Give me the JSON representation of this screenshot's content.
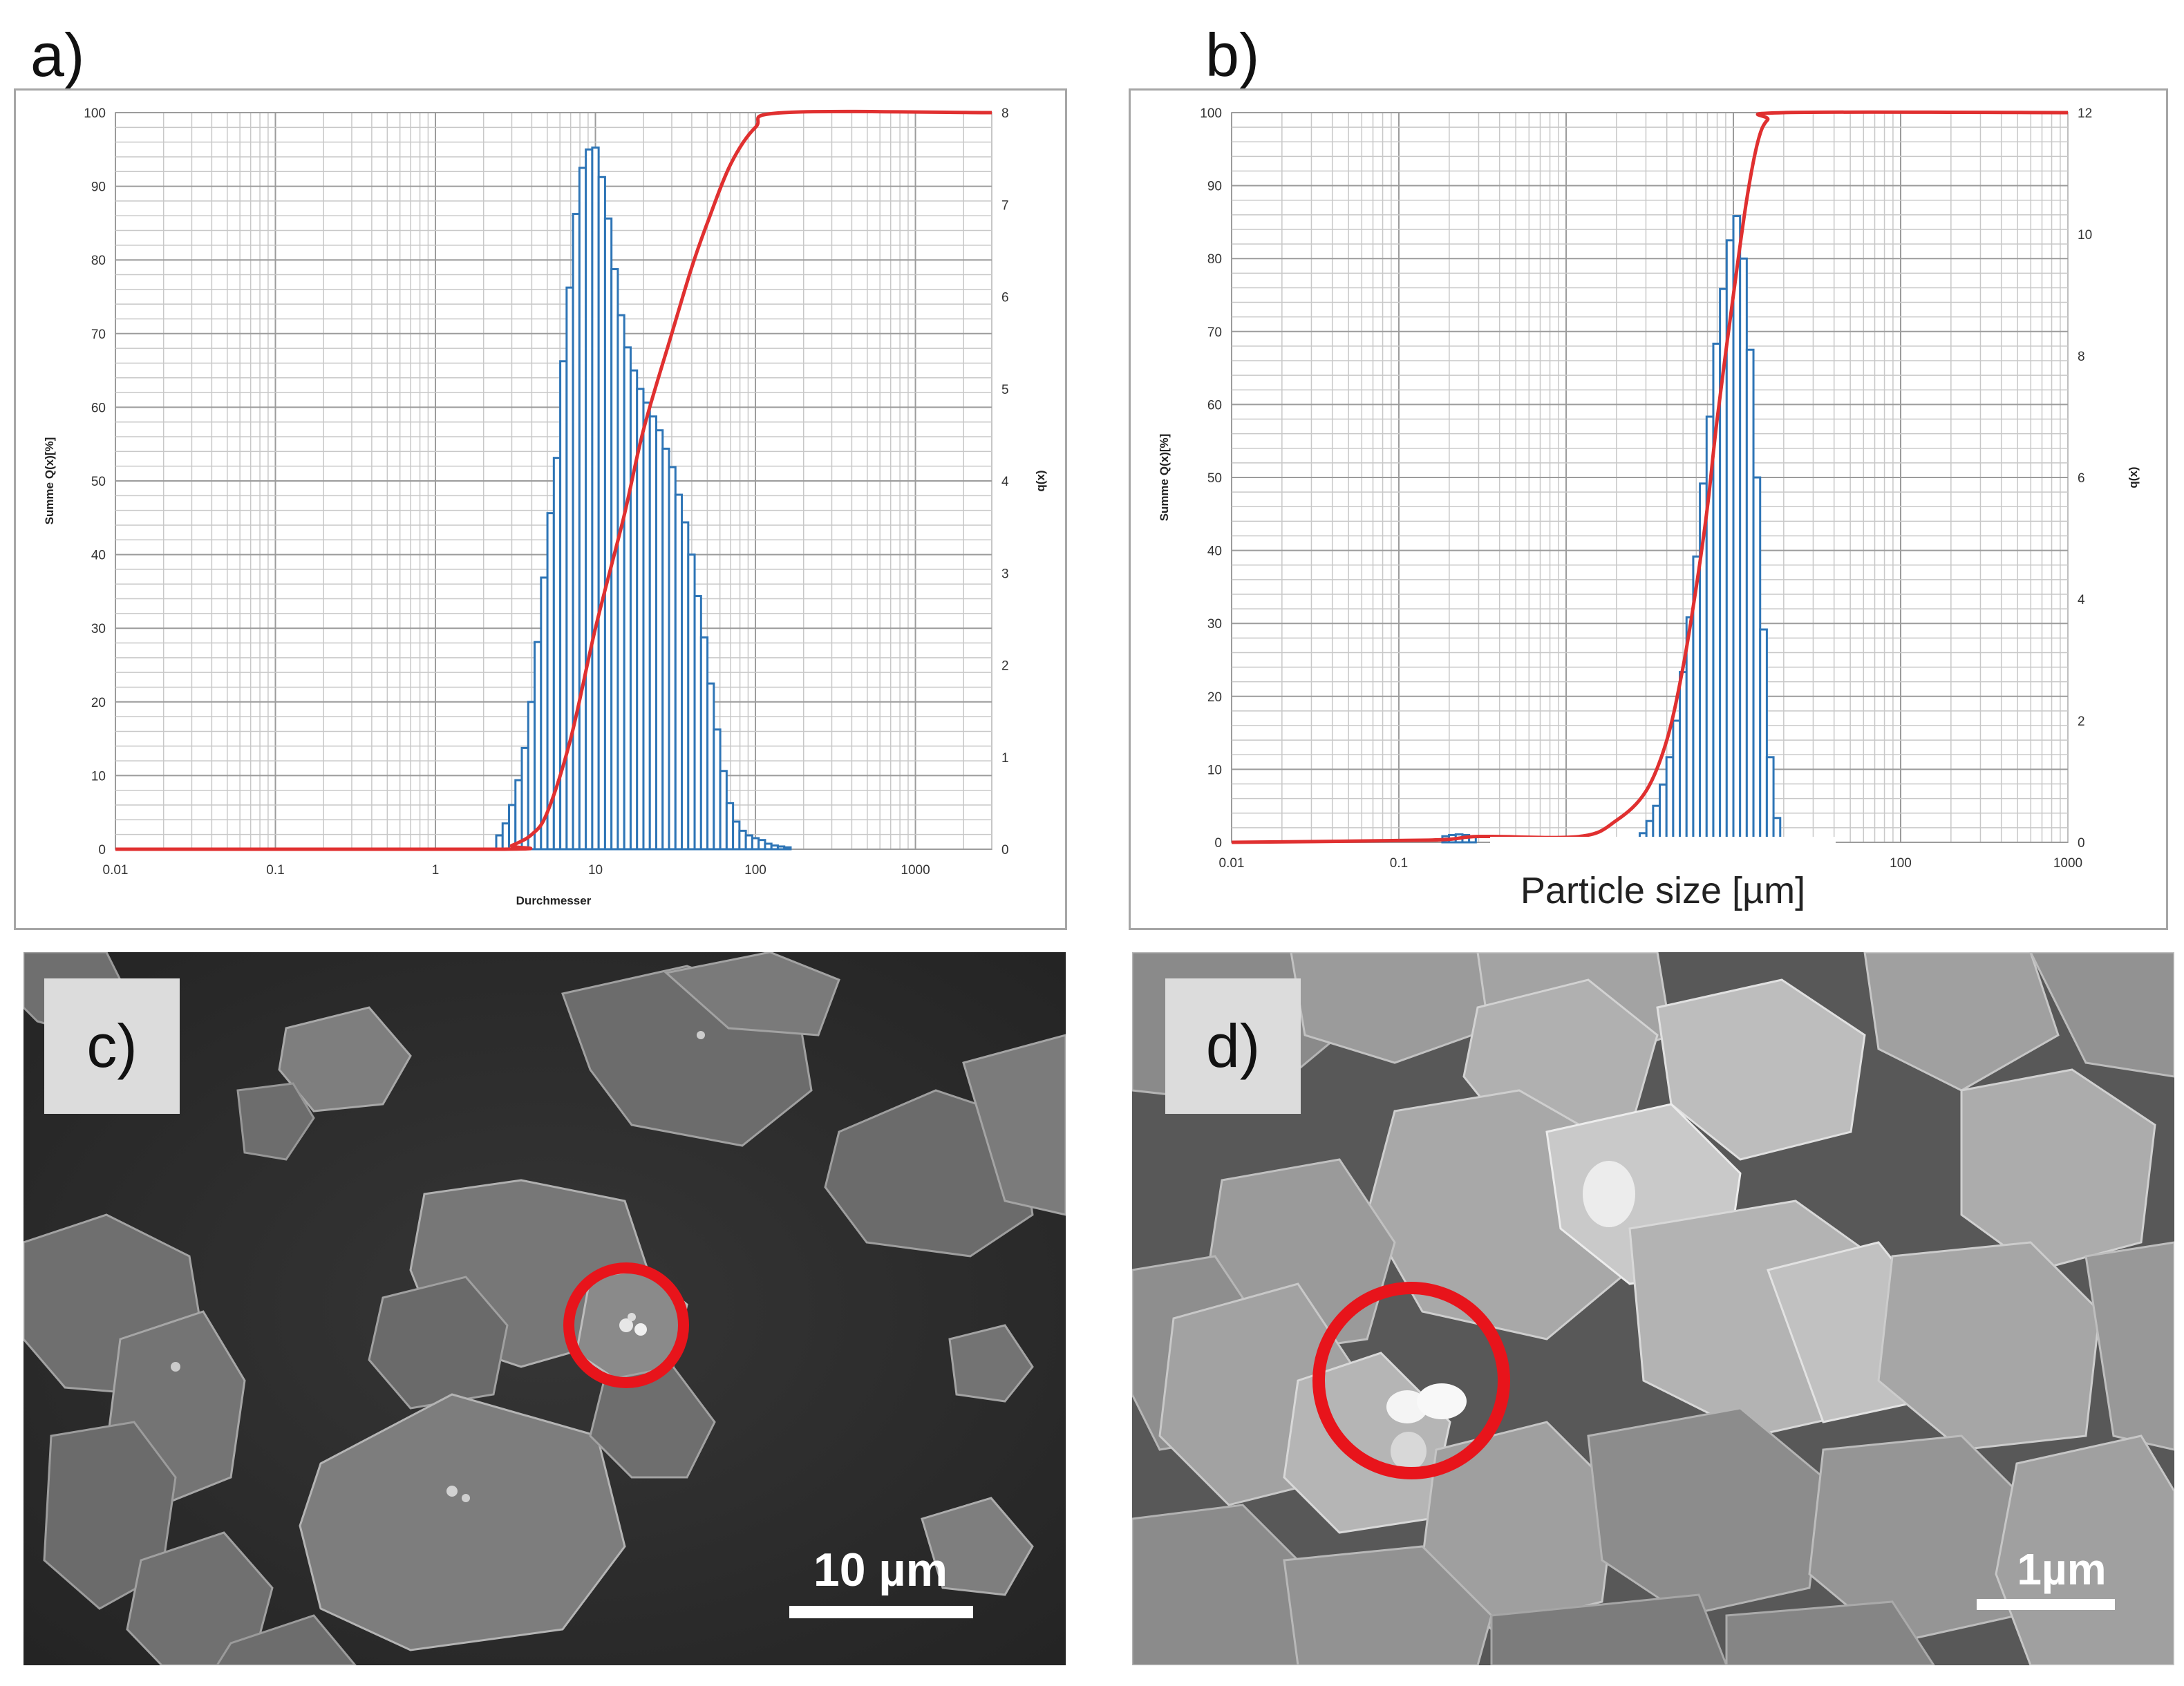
{
  "figure": {
    "panel_a_label": "a)",
    "panel_b_label": "b)",
    "panel_c_label": "c)",
    "panel_d_label": "d)",
    "scale_c": "10 µm",
    "scale_d": "1µm",
    "colors": {
      "histogram": "#2e75b6",
      "cumulative": "#e03030",
      "grid": "#c8c8c8",
      "marker_circle": "#e8141b"
    }
  },
  "chart_data": [
    {
      "panel": "a)",
      "type": "bar",
      "xscale": "log",
      "xlim": [
        0.01,
        3000
      ],
      "xticks": [
        "0.01",
        "0.1",
        "1",
        "10",
        "100",
        "1000"
      ],
      "xlabel": "Durchmesser",
      "ylabel_left": "Summe Q(x)[%]",
      "ylabel_right": "q(x)",
      "ylim_left": [
        0,
        100
      ],
      "ylim_right": [
        0,
        8
      ],
      "yticks_left": [
        "0",
        "10",
        "20",
        "30",
        "40",
        "50",
        "60",
        "70",
        "80",
        "90",
        "100"
      ],
      "yticks_right": [
        "0",
        "1",
        "2",
        "3",
        "4",
        "5",
        "6",
        "7",
        "8"
      ],
      "grid": true,
      "series": [
        {
          "kind": "histogram",
          "bins_log10": [
            [
              0.38,
              0.42,
              0.15
            ],
            [
              0.42,
              0.46,
              0.28
            ],
            [
              0.46,
              0.5,
              0.48
            ],
            [
              0.5,
              0.54,
              0.75
            ],
            [
              0.54,
              0.58,
              1.1
            ],
            [
              0.58,
              0.62,
              1.6
            ],
            [
              0.62,
              0.66,
              2.25
            ],
            [
              0.66,
              0.7,
              2.95
            ],
            [
              0.7,
              0.74,
              3.65
            ],
            [
              0.74,
              0.78,
              4.25
            ],
            [
              0.78,
              0.82,
              5.3
            ],
            [
              0.82,
              0.86,
              6.1
            ],
            [
              0.86,
              0.9,
              6.9
            ],
            [
              0.9,
              0.94,
              7.4
            ],
            [
              0.94,
              0.98,
              7.6
            ],
            [
              0.98,
              1.02,
              7.62
            ],
            [
              1.02,
              1.06,
              7.3
            ],
            [
              1.06,
              1.1,
              6.85
            ],
            [
              1.1,
              1.14,
              6.3
            ],
            [
              1.14,
              1.18,
              5.8
            ],
            [
              1.18,
              1.22,
              5.45
            ],
            [
              1.22,
              1.26,
              5.2
            ],
            [
              1.26,
              1.3,
              5.0
            ],
            [
              1.3,
              1.34,
              4.85
            ],
            [
              1.34,
              1.38,
              4.7
            ],
            [
              1.38,
              1.42,
              4.55
            ],
            [
              1.42,
              1.46,
              4.35
            ],
            [
              1.46,
              1.5,
              4.15
            ],
            [
              1.5,
              1.54,
              3.85
            ],
            [
              1.54,
              1.58,
              3.55
            ],
            [
              1.58,
              1.62,
              3.2
            ],
            [
              1.62,
              1.66,
              2.75
            ],
            [
              1.66,
              1.7,
              2.3
            ],
            [
              1.7,
              1.74,
              1.8
            ],
            [
              1.74,
              1.78,
              1.3
            ],
            [
              1.78,
              1.82,
              0.85
            ],
            [
              1.82,
              1.86,
              0.5
            ],
            [
              1.86,
              1.9,
              0.3
            ],
            [
              1.9,
              1.94,
              0.2
            ],
            [
              1.94,
              1.98,
              0.15
            ],
            [
              1.98,
              2.02,
              0.12
            ],
            [
              2.02,
              2.06,
              0.1
            ],
            [
              2.06,
              2.1,
              0.06
            ],
            [
              2.1,
              2.14,
              0.04
            ],
            [
              2.14,
              2.18,
              0.03
            ],
            [
              2.18,
              2.22,
              0.02
            ]
          ]
        },
        {
          "kind": "cumulative",
          "points": [
            [
              0.01,
              0
            ],
            [
              2.5,
              0
            ],
            [
              3,
              0.5
            ],
            [
              4,
              2
            ],
            [
              5,
              5
            ],
            [
              7,
              15
            ],
            [
              10,
              30
            ],
            [
              15,
              45
            ],
            [
              20,
              57
            ],
            [
              30,
              70
            ],
            [
              40,
              79
            ],
            [
              50,
              85
            ],
            [
              70,
              93
            ],
            [
              100,
              98
            ],
            [
              150,
              100
            ],
            [
              3000,
              100
            ]
          ]
        }
      ]
    },
    {
      "panel": "b)",
      "type": "bar",
      "xscale": "log",
      "xlim": [
        0.01,
        1000
      ],
      "xticks": [
        "0.01",
        "0.1",
        "100",
        "1000"
      ],
      "xlabel": "Particle size [µm]",
      "ylabel_left": "Summe Q(x)[%]",
      "ylabel_right": "q(x)",
      "ylim_left": [
        0,
        100
      ],
      "ylim_right": [
        0,
        12
      ],
      "yticks_left": [
        "0",
        "10",
        "20",
        "30",
        "40",
        "50",
        "60",
        "70",
        "80",
        "90",
        "100"
      ],
      "yticks_right": [
        "0",
        "2",
        "4",
        "6",
        "8",
        "10",
        "12"
      ],
      "grid": true,
      "series": [
        {
          "kind": "histogram",
          "bins_log10": [
            [
              -0.74,
              -0.7,
              0.1
            ],
            [
              -0.7,
              -0.66,
              0.12
            ],
            [
              -0.66,
              -0.62,
              0.13
            ],
            [
              -0.62,
              -0.58,
              0.12
            ],
            [
              -0.58,
              -0.54,
              0.1
            ],
            [
              0.4,
              0.44,
              0.05
            ],
            [
              0.44,
              0.48,
              0.15
            ],
            [
              0.48,
              0.52,
              0.35
            ],
            [
              0.52,
              0.56,
              0.6
            ],
            [
              0.56,
              0.6,
              0.95
            ],
            [
              0.6,
              0.64,
              1.4
            ],
            [
              0.64,
              0.68,
              2.0
            ],
            [
              0.68,
              0.72,
              2.8
            ],
            [
              0.72,
              0.76,
              3.7
            ],
            [
              0.76,
              0.8,
              4.7
            ],
            [
              0.8,
              0.84,
              5.9
            ],
            [
              0.84,
              0.88,
              7.0
            ],
            [
              0.88,
              0.92,
              8.2
            ],
            [
              0.92,
              0.96,
              9.1
            ],
            [
              0.96,
              1.0,
              9.9
            ],
            [
              1.0,
              1.04,
              10.3
            ],
            [
              1.04,
              1.08,
              9.6
            ],
            [
              1.08,
              1.12,
              8.1
            ],
            [
              1.12,
              1.16,
              6.0
            ],
            [
              1.16,
              1.2,
              3.5
            ],
            [
              1.2,
              1.24,
              1.4
            ],
            [
              1.24,
              1.28,
              0.4
            ]
          ]
        },
        {
          "kind": "cumulative",
          "points": [
            [
              0.01,
              0
            ],
            [
              0.15,
              0.3
            ],
            [
              0.3,
              0.8
            ],
            [
              1.2,
              0.8
            ],
            [
              2,
              3
            ],
            [
              3,
              7
            ],
            [
              4,
              14
            ],
            [
              5,
              24
            ],
            [
              6,
              35
            ],
            [
              7,
              46
            ],
            [
              8,
              58
            ],
            [
              10,
              75
            ],
            [
              12,
              88
            ],
            [
              14,
              96
            ],
            [
              16,
              99
            ],
            [
              20,
              100
            ],
            [
              1000,
              100
            ]
          ]
        }
      ]
    }
  ]
}
